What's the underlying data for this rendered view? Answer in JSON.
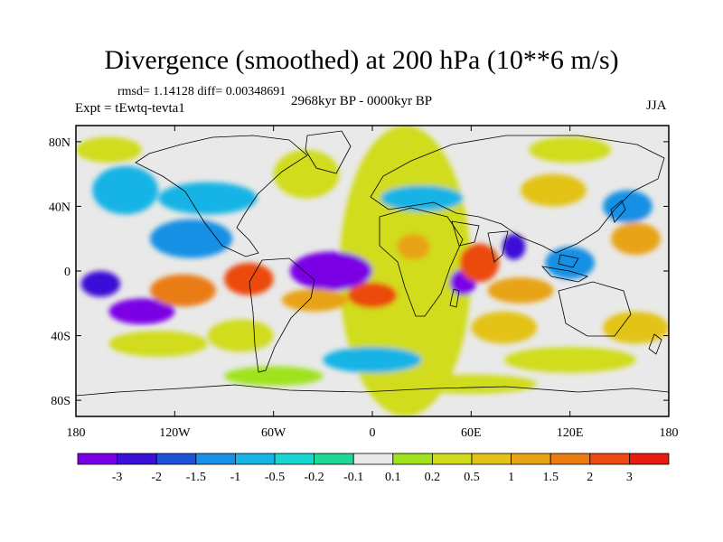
{
  "chart_data": {
    "type": "heatmap",
    "title": "Divergence (smoothed) at 200 hPa (10**6 m/s)",
    "stats_text": "rmsd= 1.14128 diff= 0.00348691",
    "experiment_text": "Expt = tEwtq-tevta1",
    "period_text": "2968kyr BP - 0000kyr BP",
    "season_text": "JJA",
    "x_ticks": [
      {
        "lon": -180,
        "label": "180"
      },
      {
        "lon": -120,
        "label": "120W"
      },
      {
        "lon": -60,
        "label": "60W"
      },
      {
        "lon": 0,
        "label": "0"
      },
      {
        "lon": 60,
        "label": "60E"
      },
      {
        "lon": 120,
        "label": "120E"
      },
      {
        "lon": 180,
        "label": "180"
      }
    ],
    "y_ticks": [
      {
        "lat": 80,
        "label": "80N"
      },
      {
        "lat": 40,
        "label": "40N"
      },
      {
        "lat": 0,
        "label": "0"
      },
      {
        "lat": -40,
        "label": "40S"
      },
      {
        "lat": -80,
        "label": "80S"
      }
    ],
    "xlim": [
      -180,
      180
    ],
    "ylim": [
      -90,
      90
    ],
    "colorbar": {
      "colors": [
        "#7b00e6",
        "#3b0fd6",
        "#1b53d9",
        "#1890e4",
        "#18b4e6",
        "#18d6d2",
        "#20d896",
        "#e9e9e9",
        "#9ee31b",
        "#d0dc1a",
        "#e3c317",
        "#e8a316",
        "#ea7c12",
        "#ec4a10",
        "#e81c0e"
      ],
      "labels": [
        "-3",
        "-2",
        "-1.5",
        "-1",
        "-0.5",
        "-0.2",
        "-0.1",
        "0.1",
        "0.2",
        "0.5",
        "1",
        "1.5",
        "2",
        "3"
      ]
    },
    "blobs": [
      {
        "lon": 20,
        "lat": 0,
        "rx": 40,
        "ry": 90,
        "level": 0.4
      },
      {
        "lon": -25,
        "lat": 0,
        "rx": 25,
        "ry": 12,
        "level": -3
      },
      {
        "lon": -140,
        "lat": -25,
        "rx": 20,
        "ry": 8,
        "level": -3
      },
      {
        "lon": -165,
        "lat": -8,
        "rx": 12,
        "ry": 8,
        "level": -2.5
      },
      {
        "lon": 55,
        "lat": -7,
        "rx": 8,
        "ry": 8,
        "level": -3
      },
      {
        "lon": 86,
        "lat": 15,
        "rx": 7,
        "ry": 8,
        "level": -2.5
      },
      {
        "lon": 155,
        "lat": 40,
        "rx": 15,
        "ry": 10,
        "level": -1.2
      },
      {
        "lon": -110,
        "lat": 20,
        "rx": 25,
        "ry": 12,
        "level": -1
      },
      {
        "lon": -150,
        "lat": 50,
        "rx": 20,
        "ry": 15,
        "level": -0.8
      },
      {
        "lon": 65,
        "lat": 5,
        "rx": 12,
        "ry": 12,
        "level": 3
      },
      {
        "lon": -75,
        "lat": -5,
        "rx": 15,
        "ry": 10,
        "level": 3
      },
      {
        "lon": -115,
        "lat": -12,
        "rx": 20,
        "ry": 10,
        "level": 2
      },
      {
        "lon": 0,
        "lat": -15,
        "rx": 15,
        "ry": 8,
        "level": 2.5
      },
      {
        "lon": 25,
        "lat": 15,
        "rx": 10,
        "ry": 8,
        "level": 1.5
      },
      {
        "lon": -35,
        "lat": -18,
        "rx": 20,
        "ry": 7,
        "level": 1.5
      },
      {
        "lon": 90,
        "lat": -12,
        "rx": 20,
        "ry": 8,
        "level": 1.2
      },
      {
        "lon": 160,
        "lat": 20,
        "rx": 15,
        "ry": 10,
        "level": 1.5
      },
      {
        "lon": 110,
        "lat": 50,
        "rx": 20,
        "ry": 10,
        "level": 0.8
      },
      {
        "lon": -40,
        "lat": 60,
        "rx": 20,
        "ry": 15,
        "level": 0.5
      },
      {
        "lon": 80,
        "lat": -35,
        "rx": 20,
        "ry": 10,
        "level": 1
      },
      {
        "lon": 160,
        "lat": -35,
        "rx": 20,
        "ry": 10,
        "level": 1
      },
      {
        "lon": -80,
        "lat": -40,
        "rx": 20,
        "ry": 10,
        "level": 0.5
      },
      {
        "lon": -130,
        "lat": -45,
        "rx": 30,
        "ry": 8,
        "level": 0.3
      },
      {
        "lon": 120,
        "lat": -55,
        "rx": 40,
        "ry": 8,
        "level": 0.3
      },
      {
        "lon": -100,
        "lat": 45,
        "rx": 30,
        "ry": 10,
        "level": -0.7
      },
      {
        "lon": 30,
        "lat": 45,
        "rx": 25,
        "ry": 8,
        "level": -0.5
      },
      {
        "lon": 120,
        "lat": 5,
        "rx": 15,
        "ry": 10,
        "level": -1
      },
      {
        "lon": 0,
        "lat": -55,
        "rx": 30,
        "ry": 8,
        "level": -0.5
      },
      {
        "lon": -60,
        "lat": -65,
        "rx": 30,
        "ry": 6,
        "level": 0.2
      },
      {
        "lon": 60,
        "lat": -70,
        "rx": 40,
        "ry": 6,
        "level": 0.3
      },
      {
        "lon": -160,
        "lat": 75,
        "rx": 20,
        "ry": 8,
        "level": 0.5
      },
      {
        "lon": 120,
        "lat": 75,
        "rx": 25,
        "ry": 8,
        "level": 0.4
      }
    ]
  }
}
